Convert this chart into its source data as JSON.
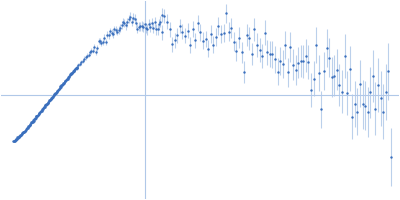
{
  "background_color": "#ffffff",
  "point_color": "#3a6fbd",
  "errorbar_color": "#b0c8e8",
  "hline_color": "#b0c8e8",
  "vline_color": "#b0c8e8",
  "figsize": [
    4.0,
    2.0
  ],
  "dpi": 100
}
